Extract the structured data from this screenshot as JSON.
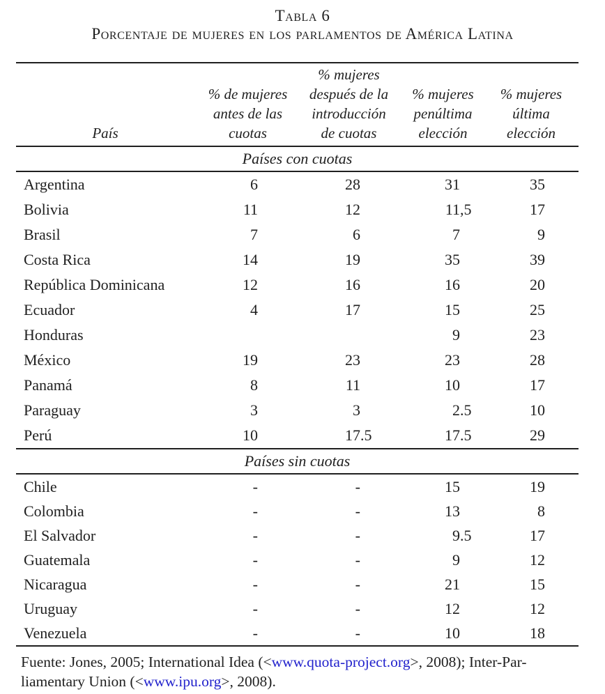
{
  "page": {
    "title_line1": "Tabla 6",
    "title_line2": "Porcentaje de mujeres en los parlamentos de América Latina"
  },
  "table": {
    "columns": [
      {
        "lines": [
          "País"
        ]
      },
      {
        "lines": [
          "% de mujeres",
          "antes de las",
          "cuotas"
        ]
      },
      {
        "lines": [
          "% mujeres",
          "después de la",
          "introducción",
          "de cuotas"
        ]
      },
      {
        "lines": [
          "% mujeres",
          "penúltima",
          "elección"
        ]
      },
      {
        "lines": [
          "% mujeres",
          "última",
          "elección"
        ]
      }
    ],
    "sections": [
      {
        "label": "Países con cuotas",
        "rows": [
          {
            "country": "Argentina",
            "values": [
              "6",
              "28",
              "31",
              "35"
            ]
          },
          {
            "country": "Bolivia",
            "values": [
              "11",
              "12",
              "11,5",
              "17"
            ]
          },
          {
            "country": "Brasil",
            "values": [
              "7",
              "6",
              "7",
              "9"
            ]
          },
          {
            "country": "Costa Rica",
            "values": [
              "14",
              "19",
              "35",
              "39"
            ]
          },
          {
            "country": "República Dominicana",
            "values": [
              "12",
              "16",
              "16",
              "20"
            ]
          },
          {
            "country": "Ecuador",
            "values": [
              "4",
              "17",
              "15",
              "25"
            ]
          },
          {
            "country": "Honduras",
            "values": [
              "",
              "",
              "9",
              "23"
            ]
          },
          {
            "country": "México",
            "values": [
              "19",
              "23",
              "23",
              "28"
            ]
          },
          {
            "country": "Panamá",
            "values": [
              "8",
              "11",
              "10",
              "17"
            ]
          },
          {
            "country": "Paraguay",
            "values": [
              "3",
              "3",
              "2.5",
              "10"
            ]
          },
          {
            "country": "Perú",
            "values": [
              "10",
              "17.5",
              "17.5",
              "29"
            ]
          }
        ]
      },
      {
        "label": "Países sin cuotas",
        "rows": [
          {
            "country": "Chile",
            "values": [
              "-",
              "-",
              "15",
              "19"
            ]
          },
          {
            "country": "Colombia",
            "values": [
              "-",
              "-",
              "13",
              "8"
            ]
          },
          {
            "country": "El Salvador",
            "values": [
              "-",
              "-",
              "9.5",
              "17"
            ]
          },
          {
            "country": "Guatemala",
            "values": [
              "-",
              "-",
              "9",
              "12"
            ]
          },
          {
            "country": "Nicaragua",
            "values": [
              "-",
              "-",
              "21",
              "15"
            ]
          },
          {
            "country": "Uruguay",
            "values": [
              "-",
              "-",
              "12",
              "12"
            ]
          },
          {
            "country": "Venezuela",
            "values": [
              "-",
              "-",
              "10",
              "18"
            ]
          }
        ]
      }
    ]
  },
  "footer": {
    "line1": [
      {
        "text": "Fuente: Jones, 2005; International Idea (<"
      },
      {
        "link": "www.quota-project.org"
      },
      {
        "text": ">, 2008); Inter-Par-"
      }
    ],
    "line2": [
      {
        "text": "liamentary Union (<"
      },
      {
        "link": "www.ipu.org"
      },
      {
        "text": ">, 2008)."
      }
    ]
  },
  "colors": {
    "text": "#1f1f1f",
    "link": "#2222cc"
  }
}
